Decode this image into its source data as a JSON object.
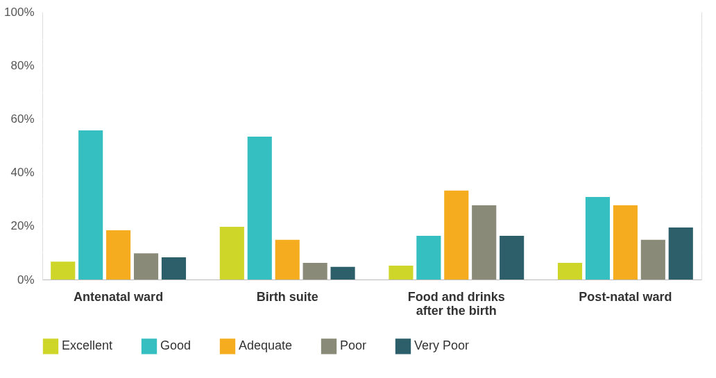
{
  "chart_data": {
    "type": "bar",
    "categories": [
      "Antenatal ward",
      "Birth suite",
      "Food and drinks\nafter the birth",
      "Post-natal ward"
    ],
    "series": [
      {
        "name": "Excellent",
        "color": "#cfd62a",
        "values": [
          6.7,
          19.7,
          5.2,
          6.2
        ]
      },
      {
        "name": "Good",
        "color": "#35bfc1",
        "values": [
          55.7,
          53.4,
          16.3,
          30.8
        ]
      },
      {
        "name": "Adequate",
        "color": "#f5ad1f",
        "values": [
          18.4,
          14.8,
          33.2,
          27.7
        ]
      },
      {
        "name": "Poor",
        "color": "#8a8a78",
        "values": [
          9.8,
          6.2,
          27.7,
          14.8
        ]
      },
      {
        "name": "Very Poor",
        "color": "#2d5f6b",
        "values": [
          8.3,
          4.7,
          16.3,
          19.4
        ]
      }
    ],
    "ylim": [
      0,
      100
    ],
    "yticks": [
      {
        "value": 0,
        "label": "0%"
      },
      {
        "value": 10,
        "label": null
      },
      {
        "value": 20,
        "label": "20%"
      },
      {
        "value": 30,
        "label": null
      },
      {
        "value": 40,
        "label": "40%"
      },
      {
        "value": 50,
        "label": null
      },
      {
        "value": 60,
        "label": "60%"
      },
      {
        "value": 70,
        "label": null
      },
      {
        "value": 80,
        "label": "80%"
      },
      {
        "value": 90,
        "label": null
      },
      {
        "value": 100,
        "label": "100%"
      }
    ],
    "grid": true,
    "legend": "bottom"
  }
}
